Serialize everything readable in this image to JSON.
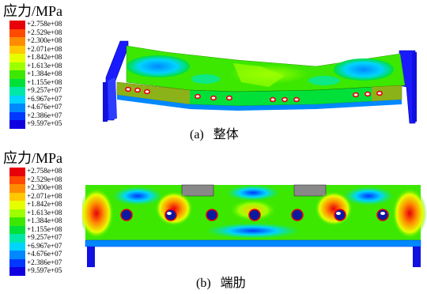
{
  "legend": {
    "title": "应力/MPa",
    "entries": [
      {
        "label": "+2.758e+08",
        "color": "#e8000b"
      },
      {
        "label": "+2.529e+08",
        "color": "#ff4a00"
      },
      {
        "label": "+2.300e+08",
        "color": "#ff8c00"
      },
      {
        "label": "+2.071e+08",
        "color": "#ffc800"
      },
      {
        "label": "+1.842e+08",
        "color": "#e6ff00"
      },
      {
        "label": "+1.613e+08",
        "color": "#9dff00"
      },
      {
        "label": "+1.384e+08",
        "color": "#3ce800"
      },
      {
        "label": "+1.155e+08",
        "color": "#00e039"
      },
      {
        "label": "+9.257e+07",
        "color": "#00e8a8"
      },
      {
        "label": "+6.967e+07",
        "color": "#00d4ff"
      },
      {
        "label": "+4.676e+07",
        "color": "#0088ff"
      },
      {
        "label": "+2.386e+07",
        "color": "#0038ff"
      },
      {
        "label": "+9.597e+05",
        "color": "#1000e0"
      }
    ]
  },
  "panel_a": {
    "caption_tag": "(a)",
    "caption_text": "整体"
  },
  "panel_b": {
    "caption_tag": "(b)",
    "caption_text": "端肋"
  }
}
